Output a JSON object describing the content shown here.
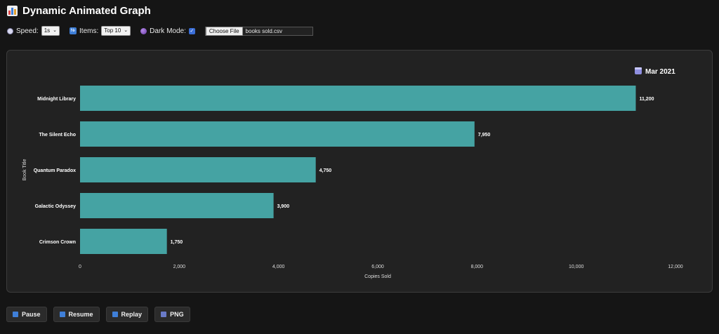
{
  "header": {
    "title": "Dynamic Animated Graph"
  },
  "controls": {
    "speed_label": "Speed:",
    "speed_value": "1s",
    "items_label": "Items:",
    "items_value": "Top 10",
    "dark_mode_label": "Dark Mode:",
    "dark_mode_checked": true,
    "file_button_label": "Choose File",
    "file_name": "books sold.csv"
  },
  "icons": {
    "title": "bar-chart-icon",
    "speed": "stopwatch-icon",
    "items": "numbers-icon",
    "dark_mode": "moon-icon",
    "date": "calendar-icon"
  },
  "colors": {
    "bar": "#45a3a3",
    "background": "#151515",
    "panel": "#222222"
  },
  "chart_data": {
    "type": "bar",
    "orientation": "horizontal",
    "date_label": "Mar 2021",
    "categories": [
      "Midnight Library",
      "The Silent Echo",
      "Quantum Paradox",
      "Galactic Odyssey",
      "Crimson Crown"
    ],
    "values": [
      11200,
      7950,
      4750,
      3900,
      1750
    ],
    "value_labels": [
      "11,200",
      "7,950",
      "4,750",
      "3,900",
      "1,750"
    ],
    "xlabel": "Copies Sold",
    "ylabel": "Book Title",
    "xlim": [
      0,
      12000
    ],
    "x_ticks": [
      0,
      2000,
      4000,
      6000,
      8000,
      10000,
      12000
    ],
    "x_tick_labels": [
      "0",
      "2,000",
      "4,000",
      "6,000",
      "8,000",
      "10,000",
      "12,000"
    ],
    "grid": false,
    "legend": "none"
  },
  "buttons": {
    "pause": "Pause",
    "resume": "Resume",
    "replay": "Replay",
    "png": "PNG"
  }
}
